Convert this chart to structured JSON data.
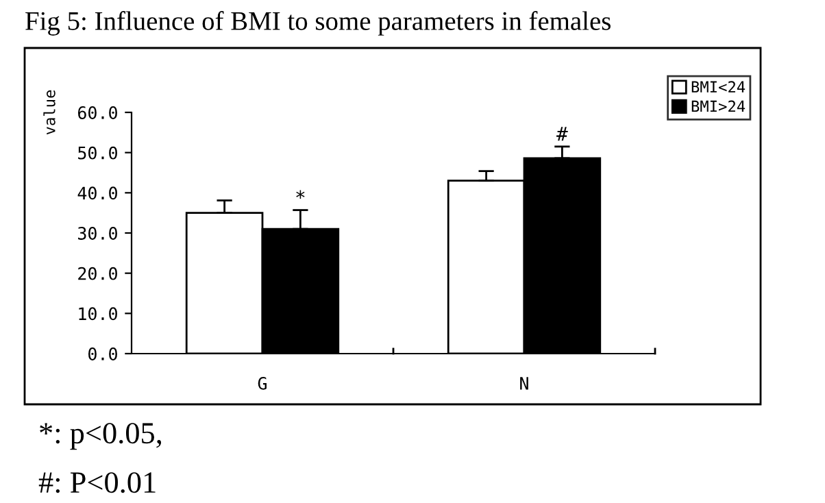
{
  "chart_data": {
    "type": "bar",
    "title": "Fig 5: Influence of BMI to some parameters in females",
    "ylabel": "value",
    "categories": [
      "G",
      "N"
    ],
    "series": [
      {
        "name": "BMI<24",
        "color": "#ffffff",
        "values": [
          35.0,
          43.0
        ],
        "errors": [
          3.1,
          2.4
        ]
      },
      {
        "name": "BMI>24",
        "color": "#000000",
        "values": [
          31.0,
          48.6
        ],
        "errors": [
          4.7,
          2.9
        ]
      }
    ],
    "ylim": [
      0,
      60
    ],
    "yticks": [
      {
        "value": 0,
        "label": "0.0"
      },
      {
        "value": 10,
        "label": "10.0"
      },
      {
        "value": 20,
        "label": "20.0"
      },
      {
        "value": 30,
        "label": "30.0"
      },
      {
        "value": 40,
        "label": "40.0"
      },
      {
        "value": 50,
        "label": "50.0"
      },
      {
        "value": 60,
        "label": "60.0"
      }
    ],
    "annotations": [
      {
        "text": "*",
        "x": "G",
        "y": 31.0
      },
      {
        "text": "#",
        "x": "N",
        "y": 48.6
      },
      "*: p<0.05,",
      "#: P<0.01"
    ],
    "legend": "top right",
    "grid": false
  }
}
